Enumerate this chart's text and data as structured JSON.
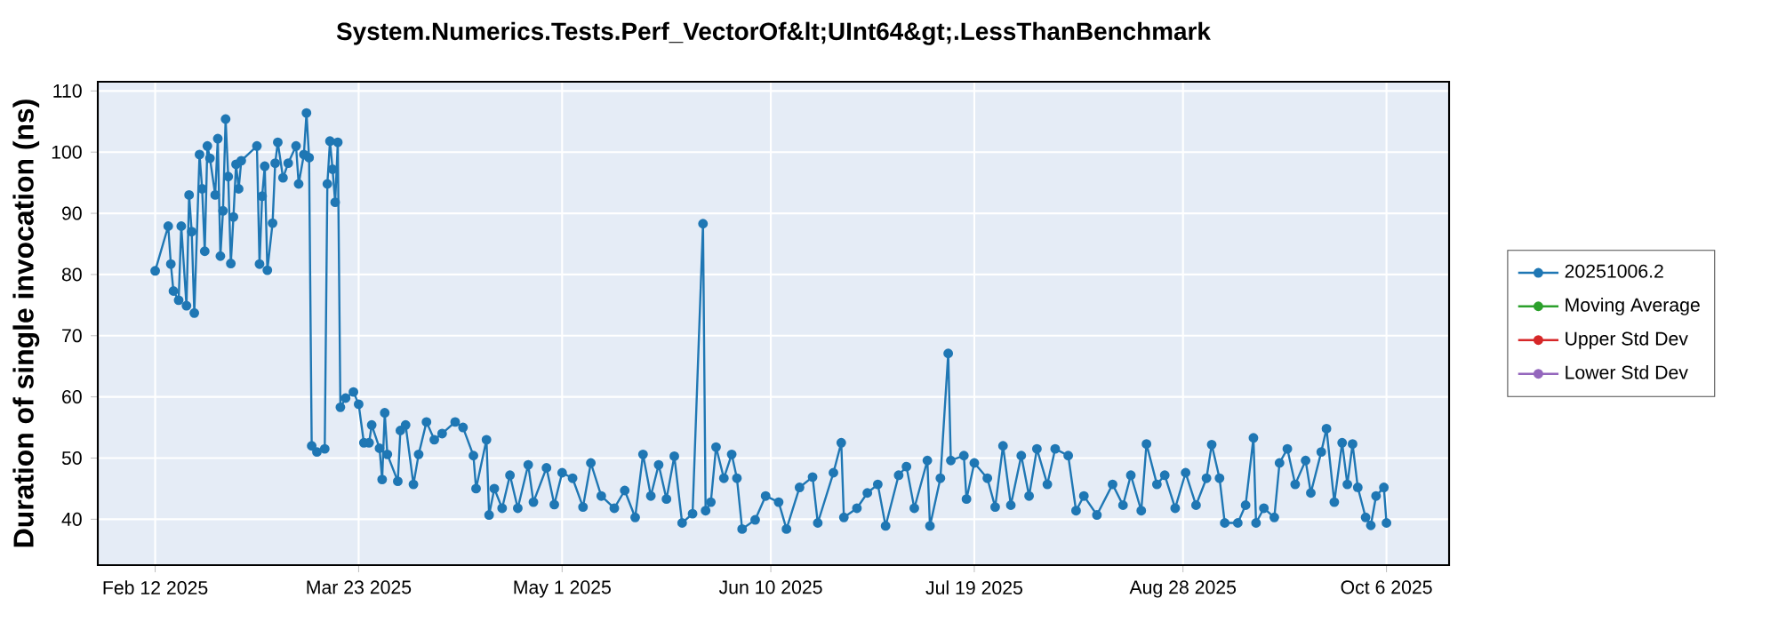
{
  "chart_data": {
    "type": "line",
    "title": "System.Numerics.Tests.Perf_VectorOf&lt;UInt64&gt;.LessThanBenchmark",
    "ylabel": "Duration of single invocation (ns)",
    "x": [
      "2025-02-12",
      "2025-02-14T12:00",
      "2025-02-15",
      "2025-02-15T12:00",
      "2025-02-16T12:00",
      "2025-02-17",
      "2025-02-18",
      "2025-02-18T12:00",
      "2025-02-19",
      "2025-02-19T12:00",
      "2025-02-20T12:00",
      "2025-02-21",
      "2025-02-21T12:00",
      "2025-02-22",
      "2025-02-22T12:00",
      "2025-02-23T12:00",
      "2025-02-24",
      "2025-02-24T12:00",
      "2025-02-25",
      "2025-02-25T12:00",
      "2025-02-26",
      "2025-02-26T12:00",
      "2025-02-27",
      "2025-02-27T12:00",
      "2025-02-28",
      "2025-02-28T12:00",
      "2025-03-03T12:00",
      "2025-03-04",
      "2025-03-04T12:00",
      "2025-03-05",
      "2025-03-05T12:00",
      "2025-03-06T12:00",
      "2025-03-07",
      "2025-03-07T12:00",
      "2025-03-08T12:00",
      "2025-03-09T12:00",
      "2025-03-11",
      "2025-03-11T12:00",
      "2025-03-12T12:00",
      "2025-03-13",
      "2025-03-13T12:00",
      "2025-03-14",
      "2025-03-15",
      "2025-03-16T12:00",
      "2025-03-17",
      "2025-03-17T12:00",
      "2025-03-18",
      "2025-03-18T12:00",
      "2025-03-19",
      "2025-03-19T12:00",
      "2025-03-20T12:00",
      "2025-03-22",
      "2025-03-23",
      "2025-03-24",
      "2025-03-25",
      "2025-03-25T12:00",
      "2025-03-27",
      "2025-03-27T12:00",
      "2025-03-28",
      "2025-03-28T12:00",
      "2025-03-30T12:00",
      "2025-03-31",
      "2025-04-01",
      "2025-04-02T12:00",
      "2025-04-03T12:00",
      "2025-04-05",
      "2025-04-06T12:00",
      "2025-04-08",
      "2025-04-10T12:00",
      "2025-04-12",
      "2025-04-14",
      "2025-04-14T12:00",
      "2025-04-16T12:00",
      "2025-04-17",
      "2025-04-18",
      "2025-04-19T12:00",
      "2025-04-21",
      "2025-04-22T12:00",
      "2025-04-24T12:00",
      "2025-04-25T12:00",
      "2025-04-28",
      "2025-04-29T12:00",
      "2025-05-01",
      "2025-05-03",
      "2025-05-05",
      "2025-05-06T12:00",
      "2025-05-08T12:00",
      "2025-05-11",
      "2025-05-13",
      "2025-05-15",
      "2025-05-16T12:00",
      "2025-05-18",
      "2025-05-19T12:00",
      "2025-05-21",
      "2025-05-22T12:00",
      "2025-05-24",
      "2025-05-26",
      "2025-05-28",
      "2025-05-28T12:00",
      "2025-05-29T12:00",
      "2025-05-30T12:00",
      "2025-06-01",
      "2025-06-02T12:00",
      "2025-06-03T12:00",
      "2025-06-04T12:00",
      "2025-06-07",
      "2025-06-09",
      "2025-06-11T12:00",
      "2025-06-13",
      "2025-06-15T12:00",
      "2025-06-18",
      "2025-06-19",
      "2025-06-22",
      "2025-06-23T12:00",
      "2025-06-24",
      "2025-06-26T12:00",
      "2025-06-28T12:00",
      "2025-06-30T12:00",
      "2025-07-02",
      "2025-07-04T12:00",
      "2025-07-06",
      "2025-07-07T12:00",
      "2025-07-10",
      "2025-07-10T12:00",
      "2025-07-12T12:00",
      "2025-07-14",
      "2025-07-14T12:00",
      "2025-07-17",
      "2025-07-17T12:00",
      "2025-07-19",
      "2025-07-21T12:00",
      "2025-07-23",
      "2025-07-24T12:00",
      "2025-07-26",
      "2025-07-28",
      "2025-07-29T12:00",
      "2025-07-31",
      "2025-08-02",
      "2025-08-03T12:00",
      "2025-08-06",
      "2025-08-07T12:00",
      "2025-08-09",
      "2025-08-11T12:00",
      "2025-08-14T12:00",
      "2025-08-16T12:00",
      "2025-08-18",
      "2025-08-20",
      "2025-08-21",
      "2025-08-23",
      "2025-08-24T12:00",
      "2025-08-26T12:00",
      "2025-08-28T12:00",
      "2025-08-30T12:00",
      "2025-09-01T12:00",
      "2025-09-02T12:00",
      "2025-09-04",
      "2025-09-05",
      "2025-09-07T12:00",
      "2025-09-09",
      "2025-09-10T12:00",
      "2025-09-11",
      "2025-09-12T12:00",
      "2025-09-14T12:00",
      "2025-09-15T12:00",
      "2025-09-17",
      "2025-09-18T12:00",
      "2025-09-20T12:00",
      "2025-09-21T12:00",
      "2025-09-23T12:00",
      "2025-09-24T12:00",
      "2025-09-26",
      "2025-09-27T12:00",
      "2025-09-28T12:00",
      "2025-09-29T12:00",
      "2025-09-30T12:00",
      "2025-10-02",
      "2025-10-03",
      "2025-10-04",
      "2025-10-05T12:00",
      "2025-10-06"
    ],
    "series": [
      {
        "name": "20251006.2",
        "color": "#1f77b4",
        "values": [
          80.6,
          87.9,
          81.7,
          77.3,
          75.8,
          87.9,
          74.9,
          93,
          87,
          73.7,
          99.6,
          94,
          83.8,
          101,
          99,
          93,
          102.2,
          83,
          90.4,
          105.4,
          96,
          81.8,
          89.4,
          98,
          94,
          98.6,
          101,
          81.7,
          92.8,
          97.7,
          80.7,
          88.4,
          98.2,
          101.6,
          95.8,
          98.2,
          101,
          94.8,
          99.6,
          106.4,
          99.1,
          52,
          51,
          51.5,
          94.8,
          101.8,
          97.2,
          91.8,
          101.6,
          58.3,
          59.8,
          60.8,
          58.8,
          52.5,
          52.5,
          55.4,
          51.6,
          46.5,
          57.4,
          50.6,
          46.2,
          54.5,
          55.4,
          45.7,
          50.6,
          55.9,
          53,
          54,
          55.9,
          55,
          50.4,
          45,
          53,
          40.7,
          45,
          41.8,
          47.2,
          41.8,
          48.9,
          42.8,
          48.4,
          42.4,
          47.6,
          46.7,
          42,
          49.2,
          43.8,
          41.8,
          44.7,
          40.3,
          50.6,
          43.8,
          48.9,
          43.3,
          50.3,
          39.4,
          40.9,
          88.3,
          41.4,
          42.8,
          51.8,
          46.7,
          50.6,
          46.7,
          38.4,
          39.9,
          43.8,
          42.8,
          38.4,
          45.2,
          46.9,
          39.4,
          47.6,
          52.5,
          40.3,
          41.8,
          44.3,
          45.7,
          38.9,
          47.2,
          48.6,
          41.8,
          49.6,
          38.9,
          46.7,
          67.1,
          49.6,
          50.4,
          43.3,
          49.2,
          46.7,
          42,
          52,
          42.3,
          50.4,
          43.8,
          51.5,
          45.7,
          51.5,
          50.4,
          41.4,
          43.8,
          40.7,
          45.7,
          42.3,
          47.2,
          41.4,
          52.3,
          45.7,
          47.2,
          41.8,
          47.6,
          42.3,
          46.7,
          52.2,
          46.7,
          39.4,
          39.4,
          42.3,
          53.3,
          39.4,
          41.8,
          40.3,
          49.2,
          51.5,
          45.7,
          49.6,
          44.3,
          51,
          54.8,
          42.8,
          52.5,
          45.7,
          52.3,
          45.2,
          40.3,
          39,
          43.8,
          45.2,
          39.4
        ]
      },
      {
        "name": "Moving Average",
        "color": "#2ca02c",
        "values": [
          null,
          null,
          null,
          null,
          null,
          null,
          null,
          null,
          null,
          null,
          null,
          null,
          null,
          null,
          null,
          null,
          null,
          null,
          null,
          null,
          null,
          null,
          null,
          null,
          null,
          null,
          null,
          null,
          null,
          null,
          null,
          null,
          null,
          null,
          null,
          null,
          null,
          null,
          null,
          null,
          null,
          null,
          null,
          null,
          null,
          null,
          null,
          null,
          null,
          null,
          null,
          null,
          null,
          null,
          null,
          null,
          null,
          null,
          null,
          null,
          null,
          null,
          null,
          null,
          null,
          null,
          null,
          null,
          null,
          null,
          null,
          null,
          null,
          null,
          null,
          null,
          null,
          null,
          null,
          null,
          null,
          null,
          null,
          null,
          null,
          null,
          null,
          null,
          null,
          null,
          null,
          null,
          null,
          null,
          null,
          null,
          null,
          null,
          null,
          null,
          null,
          null,
          null,
          null,
          null,
          null,
          null,
          null,
          null,
          null,
          null,
          null,
          null,
          null,
          null,
          null,
          null,
          null,
          null,
          null,
          null,
          null,
          null,
          null,
          null,
          null,
          null,
          null,
          null,
          null,
          null,
          null,
          null,
          null,
          null,
          null,
          null,
          null,
          null,
          null,
          null,
          null,
          null,
          null,
          null,
          null,
          null,
          null,
          null,
          null,
          null,
          null,
          null,
          null,
          null,
          null,
          null,
          null,
          null,
          null,
          null,
          null,
          null,
          null,
          null,
          null,
          null,
          null,
          null,
          null,
          null,
          null,
          null,
          null,
          null,
          null,
          null,
          null,
          null,
          null
        ]
      },
      {
        "name": "Upper Std Dev",
        "color": "#d62728",
        "values": [
          null,
          null,
          null,
          null,
          null,
          null,
          null,
          null,
          null,
          null,
          null,
          null,
          null,
          null,
          null,
          null,
          null,
          null,
          null,
          null,
          null,
          null,
          null,
          null,
          null,
          null,
          null,
          null,
          null,
          null,
          null,
          null,
          null,
          null,
          null,
          null,
          null,
          null,
          null,
          null,
          null,
          null,
          null,
          null,
          null,
          null,
          null,
          null,
          null,
          null,
          null,
          null,
          null,
          null,
          null,
          null,
          null,
          null,
          null,
          null,
          null,
          null,
          null,
          null,
          null,
          null,
          null,
          null,
          null,
          null,
          null,
          null,
          null,
          null,
          null,
          null,
          null,
          null,
          null,
          null,
          null,
          null,
          null,
          null,
          null,
          null,
          null,
          null,
          null,
          null,
          null,
          null,
          null,
          null,
          null,
          null,
          null,
          null,
          null,
          null,
          null,
          null,
          null,
          null,
          null,
          null,
          null,
          null,
          null,
          null,
          null,
          null,
          null,
          null,
          null,
          null,
          null,
          null,
          null,
          null,
          null,
          null,
          null,
          null,
          null,
          null,
          null,
          null,
          null,
          null,
          null,
          null,
          null,
          null,
          null,
          null,
          null,
          null,
          null,
          null,
          null,
          null,
          null,
          null,
          null,
          null,
          null,
          null,
          null,
          null,
          null,
          null,
          null,
          null,
          null,
          null,
          null,
          null,
          null,
          null,
          null,
          null,
          null,
          null,
          null,
          null,
          null,
          null,
          null,
          null,
          null,
          null,
          null,
          null,
          null,
          null,
          null,
          null,
          null,
          null
        ]
      },
      {
        "name": "Lower Std Dev",
        "color": "#9467bd",
        "values": [
          null,
          null,
          null,
          null,
          null,
          null,
          null,
          null,
          null,
          null,
          null,
          null,
          null,
          null,
          null,
          null,
          null,
          null,
          null,
          null,
          null,
          null,
          null,
          null,
          null,
          null,
          null,
          null,
          null,
          null,
          null,
          null,
          null,
          null,
          null,
          null,
          null,
          null,
          null,
          null,
          null,
          null,
          null,
          null,
          null,
          null,
          null,
          null,
          null,
          null,
          null,
          null,
          null,
          null,
          null,
          null,
          null,
          null,
          null,
          null,
          null,
          null,
          null,
          null,
          null,
          null,
          null,
          null,
          null,
          null,
          null,
          null,
          null,
          null,
          null,
          null,
          null,
          null,
          null,
          null,
          null,
          null,
          null,
          null,
          null,
          null,
          null,
          null,
          null,
          null,
          null,
          null,
          null,
          null,
          null,
          null,
          null,
          null,
          null,
          null,
          null,
          null,
          null,
          null,
          null,
          null,
          null,
          null,
          null,
          null,
          null,
          null,
          null,
          null,
          null,
          null,
          null,
          null,
          null,
          null,
          null,
          null,
          null,
          null,
          null,
          null,
          null,
          null,
          null,
          null,
          null,
          null,
          null,
          null,
          null,
          null,
          null,
          null,
          null,
          null,
          null,
          null,
          null,
          null,
          null,
          null,
          null,
          null,
          null,
          null,
          null,
          null,
          null,
          null,
          null,
          null,
          null,
          null,
          null,
          null,
          null,
          null,
          null,
          null,
          null,
          null,
          null,
          null,
          null,
          null,
          null,
          null,
          null,
          null,
          null,
          null,
          null,
          null,
          null,
          null
        ]
      }
    ],
    "xlim": [
      "2025-02-01",
      "2025-10-18"
    ],
    "xticks": [
      {
        "value": "2025-02-12",
        "label": "Feb 12 2025"
      },
      {
        "value": "2025-03-23",
        "label": "Mar 23 2025"
      },
      {
        "value": "2025-05-01",
        "label": "May 1 2025"
      },
      {
        "value": "2025-06-10",
        "label": "Jun 10 2025"
      },
      {
        "value": "2025-07-19",
        "label": "Jul 19 2025"
      },
      {
        "value": "2025-08-28",
        "label": "Aug 28 2025"
      },
      {
        "value": "2025-10-06",
        "label": "Oct 6 2025"
      }
    ],
    "ylim": [
      32.5,
      111.5
    ],
    "yticks": [
      40,
      50,
      60,
      70,
      80,
      90,
      100,
      110
    ],
    "grid": true,
    "legend": "right",
    "marker": "circle",
    "line_style": "solid"
  }
}
